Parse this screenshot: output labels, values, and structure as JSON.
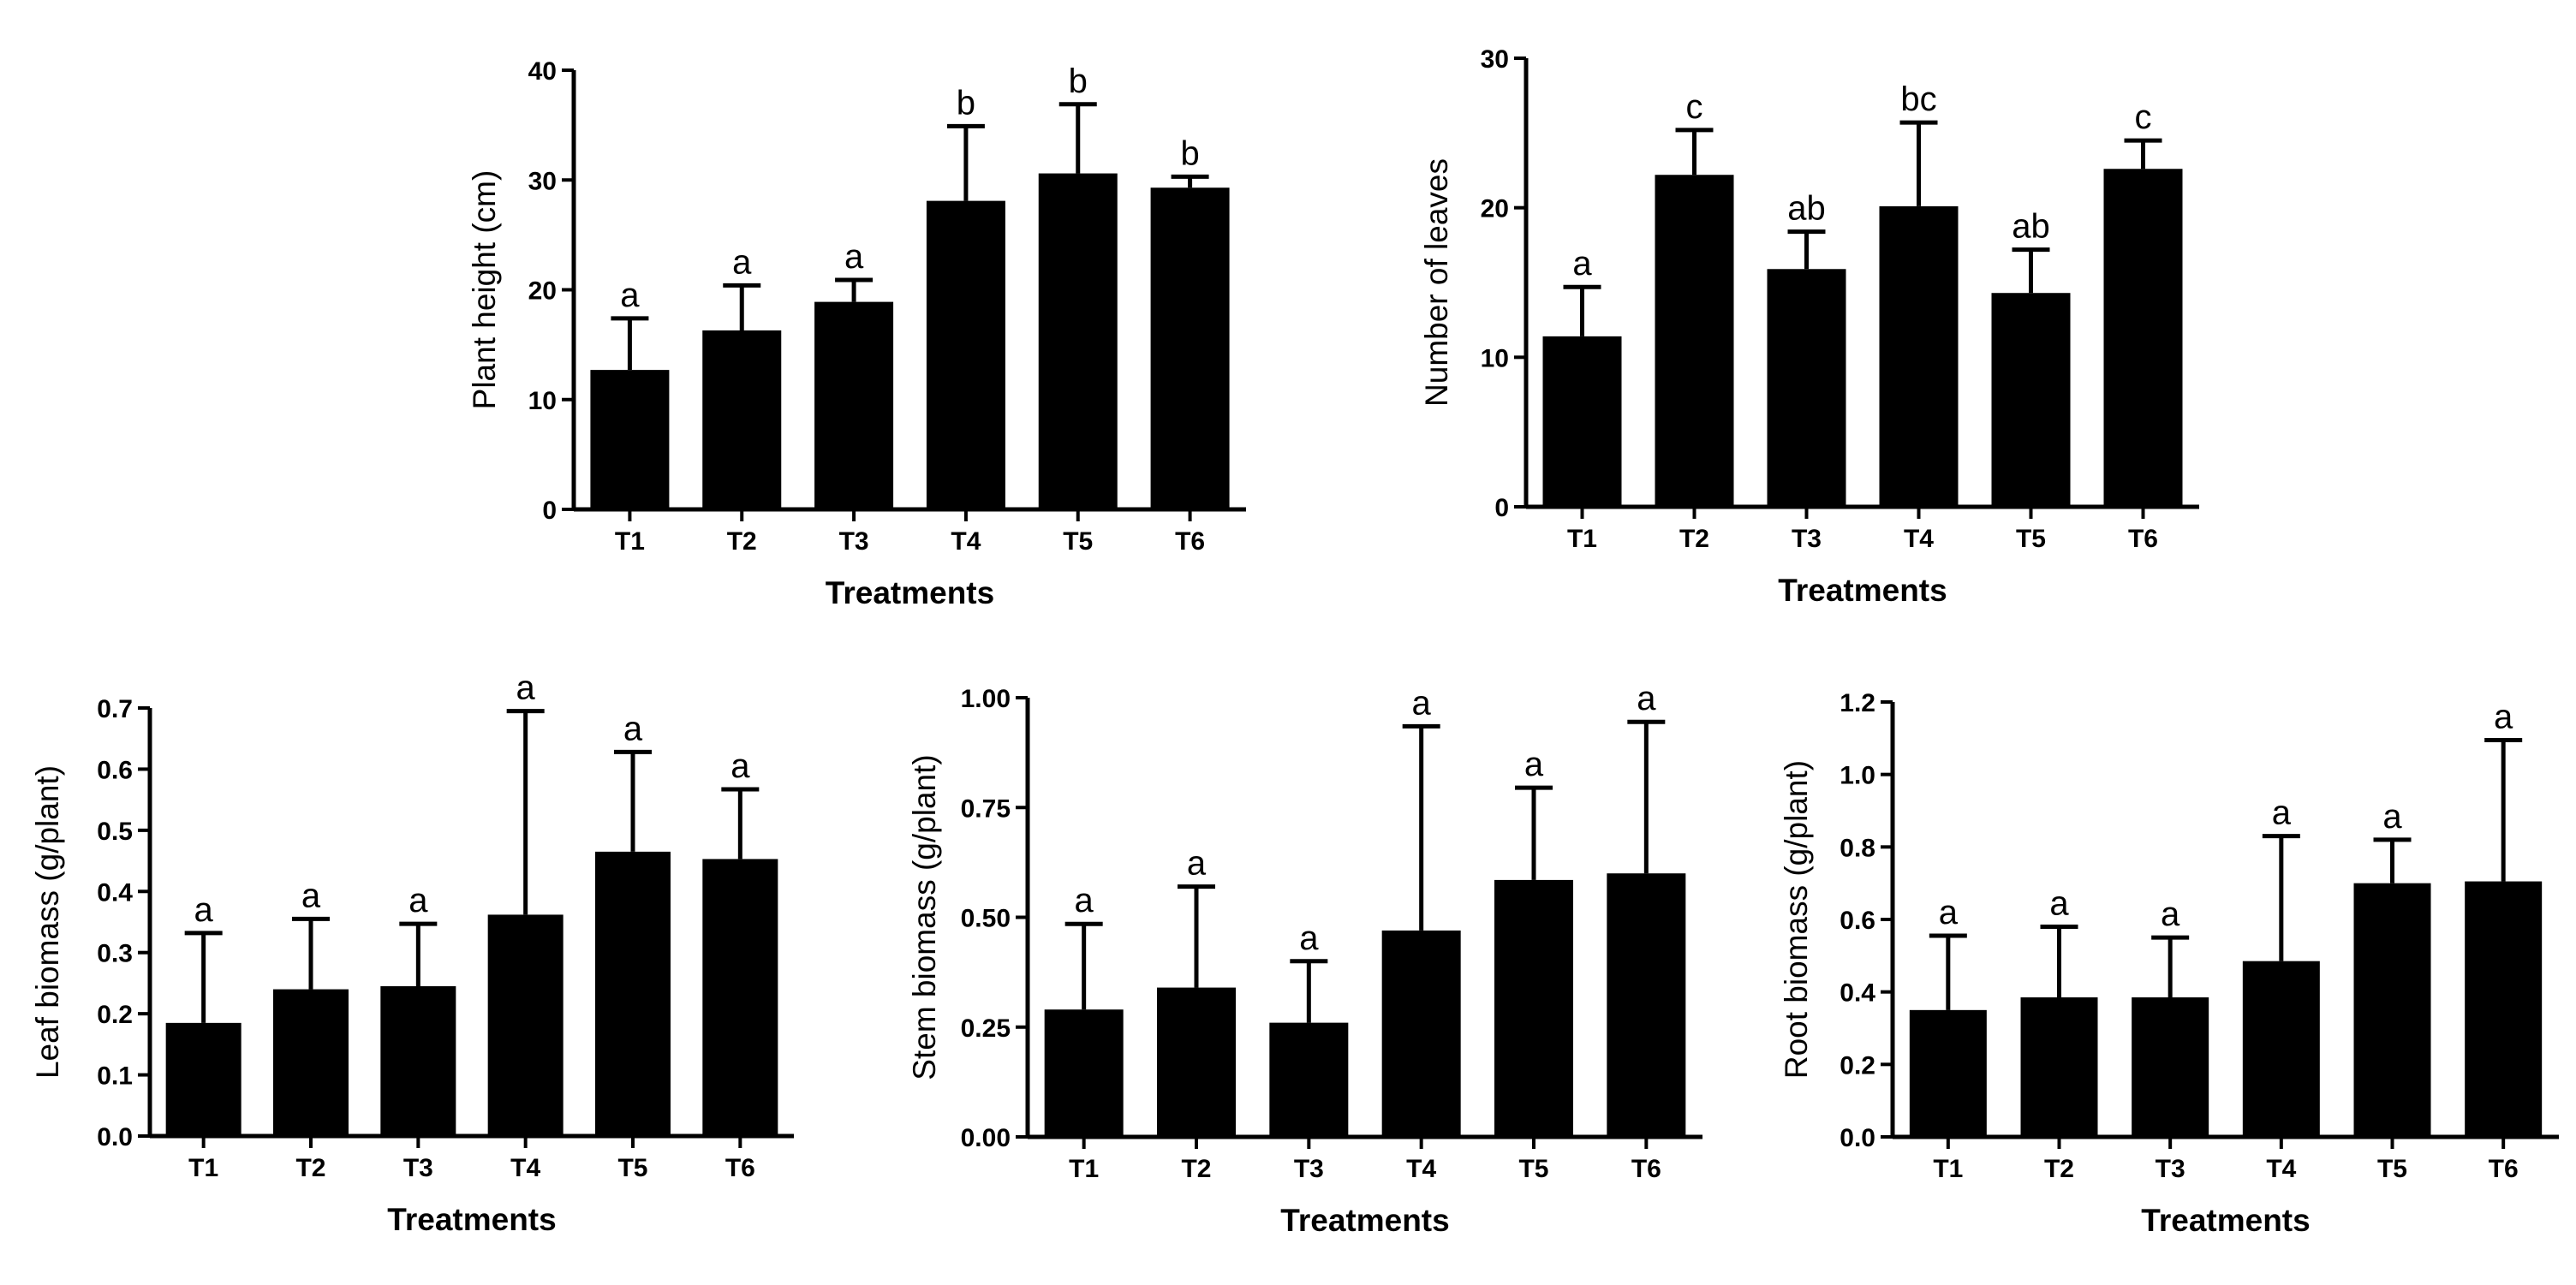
{
  "colors": {
    "bar": "#000000",
    "axis": "#000000",
    "background": "#ffffff"
  },
  "chart_data": [
    {
      "type": "bar",
      "xlabel": "Treatments",
      "ylabel": "Plant height (cm)",
      "categories": [
        "T1",
        "T2",
        "T3",
        "T4",
        "T5",
        "T6"
      ],
      "values": [
        12.7,
        16.3,
        18.9,
        28.1,
        30.6,
        29.3
      ],
      "errors": [
        4.7,
        4.1,
        2.0,
        6.8,
        6.3,
        1.0
      ],
      "letters": [
        "a",
        "a",
        "a",
        "b",
        "b",
        "b"
      ],
      "ylim": [
        0,
        40
      ],
      "yticks": [
        "0",
        "10",
        "20",
        "30",
        "40"
      ]
    },
    {
      "type": "bar",
      "xlabel": "Treatments",
      "ylabel": "Number of leaves",
      "categories": [
        "T1",
        "T2",
        "T3",
        "T4",
        "T5",
        "T6"
      ],
      "values": [
        11.4,
        22.2,
        15.9,
        20.1,
        14.3,
        22.6
      ],
      "errors": [
        3.3,
        3.0,
        2.5,
        5.6,
        2.9,
        1.9
      ],
      "letters": [
        "a",
        "c",
        "ab",
        "bc",
        "ab",
        "c"
      ],
      "ylim": [
        0,
        30
      ],
      "yticks": [
        "0",
        "10",
        "20",
        "30"
      ]
    },
    {
      "type": "bar",
      "xlabel": "Treatments",
      "ylabel": "Leaf biomass (g/plant)",
      "categories": [
        "T1",
        "T2",
        "T3",
        "T4",
        "T5",
        "T6"
      ],
      "values": [
        0.185,
        0.24,
        0.245,
        0.362,
        0.465,
        0.453
      ],
      "errors": [
        0.147,
        0.115,
        0.102,
        0.333,
        0.163,
        0.114
      ],
      "letters": [
        "a",
        "a",
        "a",
        "a",
        "a",
        "a"
      ],
      "ylim": [
        0,
        0.7
      ],
      "yticks": [
        "0.0",
        "0.1",
        "0.2",
        "0.3",
        "0.4",
        "0.5",
        "0.6",
        "0.7"
      ]
    },
    {
      "type": "bar",
      "xlabel": "Treatments",
      "ylabel": "Stem biomass (g/plant)",
      "categories": [
        "T1",
        "T2",
        "T3",
        "T4",
        "T5",
        "T6"
      ],
      "values": [
        0.29,
        0.34,
        0.26,
        0.47,
        0.585,
        0.6
      ],
      "errors": [
        0.195,
        0.23,
        0.14,
        0.465,
        0.21,
        0.345
      ],
      "letters": [
        "a",
        "a",
        "a",
        "a",
        "a",
        "a"
      ],
      "ylim": [
        0,
        1.0
      ],
      "yticks": [
        "0.00",
        "0.25",
        "0.50",
        "0.75",
        "1.00"
      ]
    },
    {
      "type": "bar",
      "xlabel": "Treatments",
      "ylabel": "Root biomass (g/plant)",
      "categories": [
        "T1",
        "T2",
        "T3",
        "T4",
        "T5",
        "T6"
      ],
      "values": [
        0.35,
        0.385,
        0.385,
        0.485,
        0.7,
        0.705
      ],
      "errors": [
        0.205,
        0.195,
        0.165,
        0.345,
        0.12,
        0.39
      ],
      "letters": [
        "a",
        "a",
        "a",
        "a",
        "a",
        "a"
      ],
      "ylim": [
        0,
        1.2
      ],
      "yticks": [
        "0.0",
        "0.2",
        "0.4",
        "0.6",
        "0.8",
        "1.0",
        "1.2"
      ]
    }
  ]
}
